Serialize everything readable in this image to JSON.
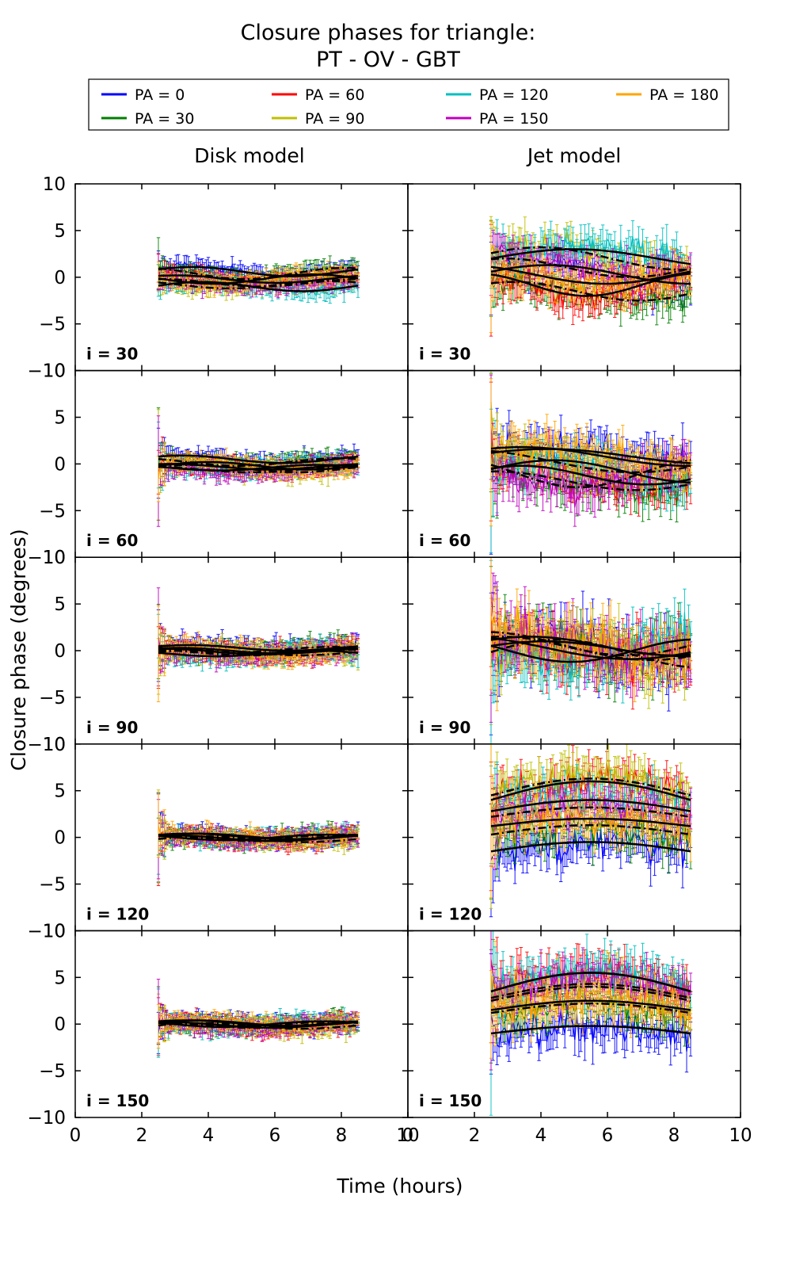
{
  "chart_data": {
    "type": "line",
    "title_line1": "Closure phases for triangle:",
    "title_line2": "PT - OV - GBT",
    "xlabel": "Time (hours)",
    "ylabel": "Closure phase (degrees)",
    "column_titles": [
      "Disk model",
      "Jet model"
    ],
    "xlim": [
      0,
      10
    ],
    "ylim": [
      -10,
      10
    ],
    "xticks": [
      0,
      2,
      4,
      6,
      8,
      10
    ],
    "yticks": [
      10,
      5,
      0,
      -5,
      -10
    ],
    "time_range": [
      2.5,
      8.5
    ],
    "grid": false,
    "legend_position": "top",
    "legend": {
      "items": [
        {
          "label": "PA = 0",
          "color": "#0000ff"
        },
        {
          "label": "PA = 30",
          "color": "#007f00"
        },
        {
          "label": "PA = 60",
          "color": "#ff0000"
        },
        {
          "label": "PA = 90",
          "color": "#bfbf00"
        },
        {
          "label": "PA = 120",
          "color": "#00bfbf"
        },
        {
          "label": "PA = 150",
          "color": "#bf00bf"
        },
        {
          "label": "PA = 180",
          "color": "#ffa500"
        }
      ]
    },
    "series_params_format": [
      "offset_deg",
      "amplitude_deg",
      "freq_cycles_per_span",
      "phase_rad"
    ],
    "rows": [
      {
        "label": "i = 30",
        "disk": {
          "noise": 0.5,
          "err": 0.7,
          "spike": 3,
          "series": [
            [
              0.6,
              0.5,
              1.0,
              0.5
            ],
            [
              0.4,
              0.6,
              1.0,
              2.0
            ],
            [
              -0.2,
              0.4,
              1.0,
              1.0
            ],
            [
              -0.8,
              0.4,
              1.0,
              2.5
            ],
            [
              -1.0,
              0.5,
              1.0,
              0.2
            ],
            [
              -0.6,
              0.4,
              1.0,
              1.5
            ],
            [
              -0.2,
              0.5,
              1.0,
              3.0
            ]
          ]
        },
        "jet": {
          "noise": 1.3,
          "err": 1.4,
          "spike": 3,
          "series": [
            [
              0.3,
              1.0,
              0.7,
              0.3
            ],
            [
              -1.5,
              1.0,
              0.8,
              1.0
            ],
            [
              -0.8,
              1.2,
              0.9,
              2.0
            ],
            [
              2.0,
              1.2,
              0.7,
              0.5
            ],
            [
              2.0,
              1.0,
              0.6,
              0.0
            ],
            [
              1.0,
              1.0,
              0.8,
              1.2
            ],
            [
              0.3,
              1.0,
              0.7,
              2.2
            ]
          ]
        }
      },
      {
        "label": "i = 60",
        "disk": {
          "noise": 0.5,
          "err": 0.7,
          "spike": 6,
          "series": [
            [
              0.5,
              0.4,
              1.0,
              0.8
            ],
            [
              0.2,
              0.4,
              1.0,
              2.2
            ],
            [
              -0.3,
              0.3,
              1.0,
              1.2
            ],
            [
              -0.5,
              0.4,
              1.0,
              0.4
            ],
            [
              -0.4,
              0.3,
              1.0,
              2.8
            ],
            [
              -0.6,
              0.3,
              1.0,
              1.8
            ],
            [
              -0.2,
              0.4,
              1.0,
              0.0
            ]
          ]
        },
        "jet": {
          "noise": 1.5,
          "err": 1.5,
          "spike": 5,
          "series": [
            [
              0.8,
              0.8,
              0.6,
              0.5
            ],
            [
              -1.8,
              1.0,
              0.7,
              1.5
            ],
            [
              -1.2,
              1.0,
              0.8,
              0.8
            ],
            [
              0.3,
              1.2,
              0.6,
              2.0
            ],
            [
              -0.8,
              1.2,
              0.7,
              0.2
            ],
            [
              -1.0,
              1.5,
              0.8,
              2.5
            ],
            [
              0.8,
              1.0,
              0.6,
              1.0
            ]
          ]
        }
      },
      {
        "label": "i = 90",
        "disk": {
          "noise": 0.6,
          "err": 0.8,
          "spike": 5,
          "series": [
            [
              0.3,
              0.3,
              1.0,
              0.6
            ],
            [
              0.1,
              0.3,
              1.0,
              2.4
            ],
            [
              -0.1,
              0.3,
              1.0,
              1.4
            ],
            [
              -0.2,
              0.3,
              1.0,
              0.2
            ],
            [
              -0.3,
              0.3,
              1.0,
              2.9
            ],
            [
              -0.2,
              0.3,
              1.0,
              1.9
            ],
            [
              0.0,
              0.3,
              1.0,
              0.9
            ]
          ]
        },
        "jet": {
          "noise": 2.2,
          "err": 2.0,
          "spike": 5,
          "series": [
            [
              0.2,
              0.8,
              0.7,
              0.4
            ],
            [
              0.5,
              1.0,
              0.8,
              1.3
            ],
            [
              0.3,
              1.2,
              0.6,
              2.1
            ],
            [
              -0.3,
              1.5,
              0.7,
              0.1
            ],
            [
              0.0,
              1.2,
              0.8,
              2.7
            ],
            [
              0.5,
              1.5,
              0.6,
              1.7
            ],
            [
              0.5,
              1.0,
              0.7,
              0.7
            ]
          ]
        }
      },
      {
        "label": "i = 120",
        "disk": {
          "noise": 0.5,
          "err": 0.7,
          "spike": 5,
          "series": [
            [
              0.1,
              0.3,
              1.0,
              0.3
            ],
            [
              0.0,
              0.3,
              1.0,
              2.1
            ],
            [
              -0.1,
              0.3,
              1.0,
              1.1
            ],
            [
              -0.2,
              0.3,
              1.0,
              0.1
            ],
            [
              0.0,
              0.3,
              1.0,
              2.6
            ],
            [
              -0.1,
              0.3,
              1.0,
              1.6
            ],
            [
              0.1,
              0.3,
              1.0,
              0.6
            ]
          ]
        },
        "jet": {
          "noise": 1.6,
          "err": 1.6,
          "spike": 5,
          "series": [
            [
              -1.5,
              1.0,
              0.5,
              0.0
            ],
            [
              0.3,
              1.0,
              0.5,
              0.0
            ],
            [
              4.0,
              2.0,
              0.5,
              0.0
            ],
            [
              4.5,
              1.8,
              0.5,
              0.0
            ],
            [
              2.8,
              1.2,
              0.5,
              0.0
            ],
            [
              2.2,
              1.0,
              0.5,
              0.0
            ],
            [
              1.2,
              0.8,
              0.5,
              0.0
            ]
          ]
        }
      },
      {
        "label": "i = 150",
        "disk": {
          "noise": 0.5,
          "err": 0.7,
          "spike": 4,
          "series": [
            [
              0.1,
              0.3,
              1.0,
              0.4
            ],
            [
              0.0,
              0.3,
              1.0,
              2.2
            ],
            [
              -0.1,
              0.3,
              1.0,
              1.2
            ],
            [
              -0.2,
              0.3,
              1.0,
              0.2
            ],
            [
              0.0,
              0.3,
              1.0,
              2.7
            ],
            [
              -0.1,
              0.3,
              1.0,
              1.7
            ],
            [
              0.1,
              0.3,
              1.0,
              0.7
            ]
          ]
        },
        "jet": {
          "noise": 1.6,
          "err": 1.6,
          "spike": 5,
          "series": [
            [
              -1.0,
              0.8,
              0.5,
              0.0
            ],
            [
              1.2,
              1.0,
              0.5,
              0.0
            ],
            [
              3.5,
              2.0,
              0.5,
              0.0
            ],
            [
              2.5,
              1.5,
              0.5,
              0.0
            ],
            [
              3.5,
              2.0,
              0.5,
              0.0
            ],
            [
              2.8,
              1.5,
              0.5,
              0.0
            ],
            [
              1.5,
              1.0,
              0.5,
              0.0
            ]
          ]
        }
      }
    ]
  }
}
